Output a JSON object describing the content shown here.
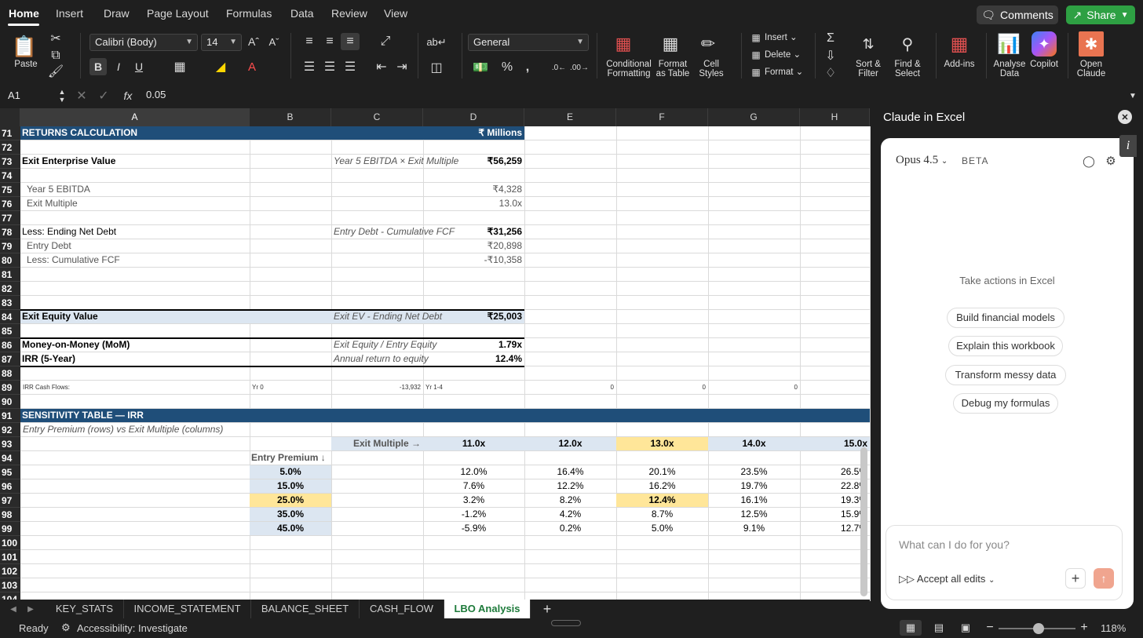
{
  "menu": {
    "tabs": [
      "Home",
      "Insert",
      "Draw",
      "Page Layout",
      "Formulas",
      "Data",
      "Review",
      "View"
    ],
    "comments": "Comments",
    "share": "Share"
  },
  "ribbon": {
    "paste": "Paste",
    "font_name": "Calibri (Body)",
    "font_size": "14",
    "number_format": "General",
    "conditional_formatting": [
      "Conditional",
      "Formatting"
    ],
    "format_as_table": [
      "Format",
      "as Table"
    ],
    "cell_styles": [
      "Cell",
      "Styles"
    ],
    "insert": "Insert",
    "delete": "Delete",
    "format": "Format",
    "sort_filter": [
      "Sort &",
      "Filter"
    ],
    "find_select": [
      "Find &",
      "Select"
    ],
    "add_ins": "Add-ins",
    "analyse_data": [
      "Analyse",
      "Data"
    ],
    "copilot": "Copilot",
    "open_claude": [
      "Open",
      "Claude"
    ]
  },
  "formula_bar": {
    "cell_ref": "A1",
    "fx": "fx",
    "value": "0.05"
  },
  "columns": [
    "A",
    "B",
    "C",
    "D",
    "E",
    "F",
    "G",
    "H"
  ],
  "rows": [
    {
      "n": "71",
      "cells": [
        {
          "col": "A",
          "text": "RETURNS CALCULATION",
          "style": "hdr"
        },
        {
          "col": "D",
          "text": "₹ Millions",
          "style": "hdr-r"
        }
      ],
      "fill": "navy-AD"
    },
    {
      "n": "72",
      "cells": []
    },
    {
      "n": "73",
      "cells": [
        {
          "col": "A",
          "text": "Exit Enterprise Value",
          "style": "b"
        },
        {
          "col": "C",
          "text": "Year 5 EBITDA × Exit Multiple",
          "style": "i"
        },
        {
          "col": "D",
          "text": "₹56,259",
          "style": "br"
        }
      ]
    },
    {
      "n": "74",
      "cells": []
    },
    {
      "n": "75",
      "cells": [
        {
          "col": "A",
          "text": "Year 5 EBITDA",
          "style": "ind"
        },
        {
          "col": "D",
          "text": "₹4,328",
          "style": "gr"
        }
      ]
    },
    {
      "n": "76",
      "cells": [
        {
          "col": "A",
          "text": "Exit Multiple",
          "style": "ind"
        },
        {
          "col": "D",
          "text": "13.0x",
          "style": "gr"
        }
      ]
    },
    {
      "n": "77",
      "cells": []
    },
    {
      "n": "78",
      "cells": [
        {
          "col": "A",
          "text": "Less: Ending Net Debt",
          "style": "n"
        },
        {
          "col": "C",
          "text": "Entry Debt - Cumulative FCF",
          "style": "i"
        },
        {
          "col": "D",
          "text": "₹31,256",
          "style": "br"
        }
      ]
    },
    {
      "n": "79",
      "cells": [
        {
          "col": "A",
          "text": "Entry Debt",
          "style": "ind"
        },
        {
          "col": "D",
          "text": "₹20,898",
          "style": "gr"
        }
      ]
    },
    {
      "n": "80",
      "cells": [
        {
          "col": "A",
          "text": "Less: Cumulative FCF",
          "style": "ind"
        },
        {
          "col": "D",
          "text": "-₹10,358",
          "style": "gr"
        }
      ]
    },
    {
      "n": "81",
      "cells": []
    },
    {
      "n": "82",
      "cells": []
    },
    {
      "n": "83",
      "cells": []
    },
    {
      "n": "84",
      "cells": [
        {
          "col": "A",
          "text": "Exit Equity Value",
          "style": "b"
        },
        {
          "col": "C",
          "text": "Exit EV - Ending Net Debt",
          "style": "i"
        },
        {
          "col": "D",
          "text": "₹25,003",
          "style": "br"
        }
      ],
      "fill": "light-AD"
    },
    {
      "n": "85",
      "cells": []
    },
    {
      "n": "86",
      "cells": [
        {
          "col": "A",
          "text": "Money-on-Money (MoM)",
          "style": "b"
        },
        {
          "col": "C",
          "text": "Exit Equity / Entry Equity",
          "style": "i"
        },
        {
          "col": "D",
          "text": "1.79x",
          "style": "br"
        }
      ]
    },
    {
      "n": "87",
      "cells": [
        {
          "col": "A",
          "text": "IRR (5-Year)",
          "style": "b"
        },
        {
          "col": "C",
          "text": "Annual return to equity",
          "style": "i"
        },
        {
          "col": "D",
          "text": "12.4%",
          "style": "br"
        }
      ]
    },
    {
      "n": "88",
      "cells": []
    },
    {
      "n": "89",
      "cells": [
        {
          "col": "A",
          "text": "IRR Cash Flows:",
          "style": "tiny"
        },
        {
          "col": "B",
          "text": "Yr 0",
          "style": "tiny"
        },
        {
          "col": "C",
          "text": "-13,932",
          "style": "tinyr"
        },
        {
          "col": "D",
          "text": "Yr 1-4",
          "style": "tiny"
        },
        {
          "col": "E",
          "text": "0",
          "style": "tinyr"
        },
        {
          "col": "F",
          "text": "0",
          "style": "tinyr"
        },
        {
          "col": "G",
          "text": "0",
          "style": "tinyr"
        }
      ]
    },
    {
      "n": "90",
      "cells": []
    },
    {
      "n": "91",
      "cells": [
        {
          "col": "A",
          "text": "SENSITIVITY TABLE — IRR",
          "style": "hdr"
        }
      ],
      "fill": "navy-AH"
    },
    {
      "n": "92",
      "cells": [
        {
          "col": "A",
          "text": "Entry Premium (rows) vs Exit Multiple (columns)",
          "style": "i"
        }
      ]
    },
    {
      "n": "93",
      "cells": [
        {
          "col": "C",
          "text": "Exit Multiple →",
          "style": "gb-r"
        },
        {
          "col": "D",
          "text": "11.0x",
          "style": "bc"
        },
        {
          "col": "E",
          "text": "12.0x",
          "style": "bc"
        },
        {
          "col": "F",
          "text": "13.0x",
          "style": "bc-y"
        },
        {
          "col": "G",
          "text": "14.0x",
          "style": "bc"
        },
        {
          "col": "H",
          "text": "15.0x",
          "style": "br"
        }
      ]
    },
    {
      "n": "94",
      "cells": [
        {
          "col": "B",
          "text": "Entry Premium ↓",
          "style": "gb"
        }
      ]
    },
    {
      "n": "95",
      "cells": [
        {
          "col": "B",
          "text": "5.0%",
          "style": "prem"
        },
        {
          "col": "D",
          "text": "12.0%",
          "style": "c"
        },
        {
          "col": "E",
          "text": "16.4%",
          "style": "c"
        },
        {
          "col": "F",
          "text": "20.1%",
          "style": "c"
        },
        {
          "col": "G",
          "text": "23.5%",
          "style": "c"
        },
        {
          "col": "H",
          "text": "26.5%",
          "style": "r"
        }
      ]
    },
    {
      "n": "96",
      "cells": [
        {
          "col": "B",
          "text": "15.0%",
          "style": "prem"
        },
        {
          "col": "D",
          "text": "7.6%",
          "style": "c"
        },
        {
          "col": "E",
          "text": "12.2%",
          "style": "c"
        },
        {
          "col": "F",
          "text": "16.2%",
          "style": "c"
        },
        {
          "col": "G",
          "text": "19.7%",
          "style": "c"
        },
        {
          "col": "H",
          "text": "22.8%",
          "style": "r"
        }
      ]
    },
    {
      "n": "97",
      "cells": [
        {
          "col": "B",
          "text": "25.0%",
          "style": "prem-y"
        },
        {
          "col": "D",
          "text": "3.2%",
          "style": "c"
        },
        {
          "col": "E",
          "text": "8.2%",
          "style": "c"
        },
        {
          "col": "F",
          "text": "12.4%",
          "style": "bc-y"
        },
        {
          "col": "G",
          "text": "16.1%",
          "style": "c"
        },
        {
          "col": "H",
          "text": "19.3%",
          "style": "r"
        }
      ]
    },
    {
      "n": "98",
      "cells": [
        {
          "col": "B",
          "text": "35.0%",
          "style": "prem"
        },
        {
          "col": "D",
          "text": "-1.2%",
          "style": "c"
        },
        {
          "col": "E",
          "text": "4.2%",
          "style": "c"
        },
        {
          "col": "F",
          "text": "8.7%",
          "style": "c"
        },
        {
          "col": "G",
          "text": "12.5%",
          "style": "c"
        },
        {
          "col": "H",
          "text": "15.9%",
          "style": "r"
        }
      ]
    },
    {
      "n": "99",
      "cells": [
        {
          "col": "B",
          "text": "45.0%",
          "style": "prem"
        },
        {
          "col": "D",
          "text": "-5.9%",
          "style": "c"
        },
        {
          "col": "E",
          "text": "0.2%",
          "style": "c"
        },
        {
          "col": "F",
          "text": "5.0%",
          "style": "c"
        },
        {
          "col": "G",
          "text": "9.1%",
          "style": "c"
        },
        {
          "col": "H",
          "text": "12.7%",
          "style": "r"
        }
      ]
    },
    {
      "n": "100",
      "cells": []
    },
    {
      "n": "101",
      "cells": []
    },
    {
      "n": "102",
      "cells": []
    },
    {
      "n": "103",
      "cells": []
    },
    {
      "n": "104",
      "cells": []
    }
  ],
  "claude": {
    "title": "Claude in Excel",
    "model": "Opus 4.5",
    "badge": "BETA",
    "prompt": "Take actions in Excel",
    "suggestions": [
      "Build financial models",
      "Explain this workbook",
      "Transform messy data",
      "Debug my formulas"
    ],
    "input_placeholder": "What can I do for you?",
    "accept_edits": "Accept all edits"
  },
  "sheets": {
    "tabs": [
      "KEY_STATS",
      "INCOME_STATEMENT",
      "BALANCE_SHEET",
      "CASH_FLOW",
      "LBO Analysis"
    ],
    "active": "LBO Analysis"
  },
  "status": {
    "ready": "Ready",
    "accessibility": "Accessibility: Investigate",
    "zoom": "118%"
  },
  "colors": {
    "navy": "#1f4e79",
    "light_blue": "#dce6f1",
    "yellow": "#ffe699",
    "green": "#2ea043",
    "accent_orange": "#e97451"
  }
}
